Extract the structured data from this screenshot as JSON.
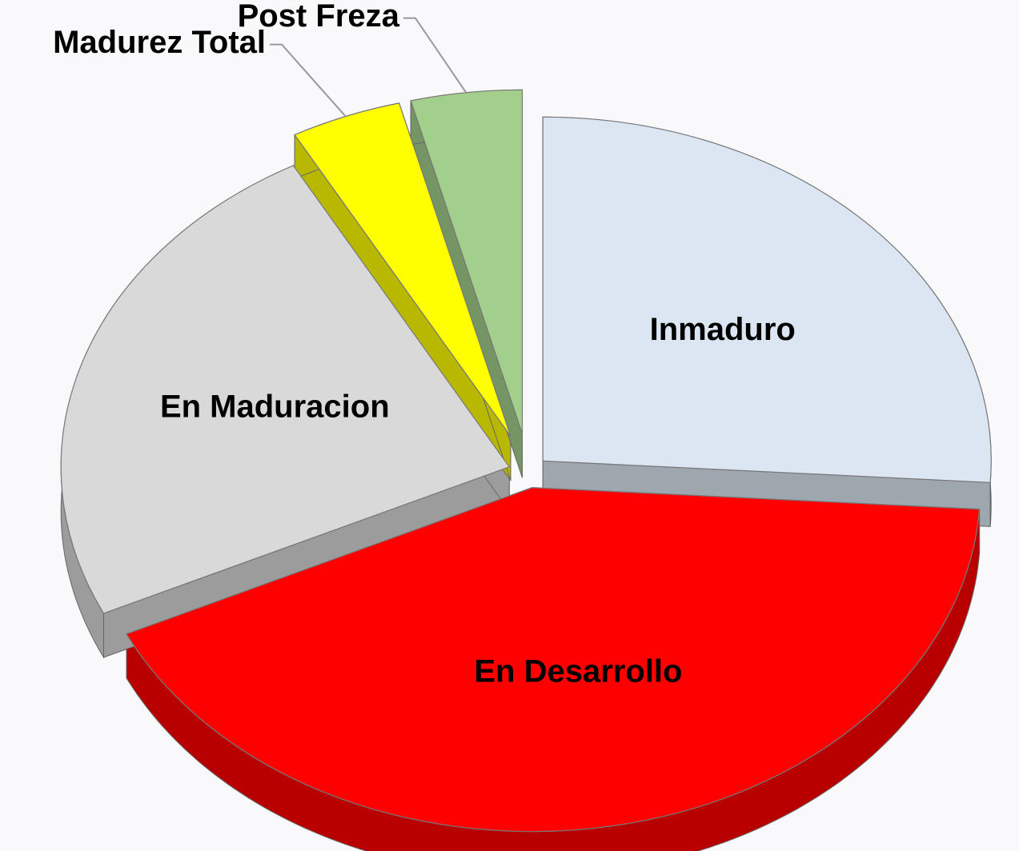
{
  "chart_data": {
    "type": "pie",
    "categories": [
      "Inmaduro",
      "En Desarrollo",
      "En Maduracion",
      "Madurez Total",
      "Post Freza"
    ],
    "values": [
      26,
      42,
      24,
      4,
      4
    ],
    "colors": [
      "#dce6f2",
      "#ff0000",
      "#d9d9d9",
      "#ffff00",
      "#a3cf8c"
    ]
  }
}
